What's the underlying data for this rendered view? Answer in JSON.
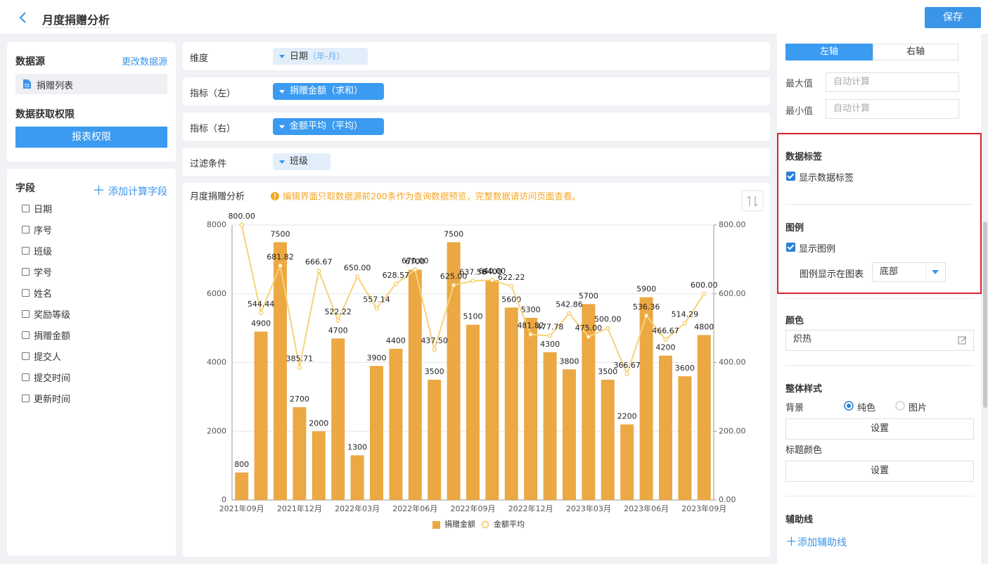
{
  "header": {
    "title": "月度捐赠分析",
    "save_button": "保存"
  },
  "left_panel": {
    "data_source_label": "数据源",
    "change_source": "更改数据源",
    "source_name": "捐赠列表",
    "permission_label": "数据获取权限",
    "permission_button": "报表权限",
    "fields_label": "字段",
    "add_field": "添加计算字段",
    "fields": [
      "日期",
      "序号",
      "班级",
      "学号",
      "姓名",
      "奖励等级",
      "捐赠金额",
      "提交人",
      "提交时间",
      "更新时间"
    ]
  },
  "config_rows": [
    {
      "label": "维度",
      "chip": "日期",
      "chip_note": "（年-月）"
    },
    {
      "label": "指标（左）",
      "chip": "捐赠金额（求和）"
    },
    {
      "label": "指标（右）",
      "chip": "金额平均（平均）"
    },
    {
      "label": "过滤条件",
      "chip": "班级"
    }
  ],
  "right_panel": {
    "axis_tabs": [
      "左轴",
      "右轴"
    ],
    "max_label": "最大值",
    "max_placeholder": "自动计算",
    "min_label": "最小值",
    "min_placeholder": "自动计算",
    "data_label_section": "数据标签",
    "show_data_labels": "显示数据标签",
    "legend_section": "图例",
    "show_legend": "显示图例",
    "legend_position_label": "图例显示在图表",
    "legend_position": "底部",
    "color_section": "颜色",
    "color_value": "炽热",
    "style_section": "整体样式",
    "background_label": "背景",
    "background_options": [
      "纯色",
      "图片"
    ],
    "background_button": "设置",
    "title_color_label": "标题颜色",
    "title_color_button": "设置",
    "aux_section": "辅助线",
    "add_aux": "添加辅助线"
  },
  "chart_data": {
    "type": "bar",
    "title": "月度捐赠分析",
    "notice": "编辑界面只取数据源前200条作为查询数据预览，完整数据请访问页面查看。",
    "categories": [
      "2021年09月",
      null,
      null,
      "2021年12月",
      null,
      null,
      "2022年03月",
      null,
      null,
      "2022年06月",
      null,
      null,
      "2022年09月",
      null,
      null,
      "2022年12月",
      null,
      null,
      "2023年03月",
      null,
      null,
      "2023年06月",
      null,
      null,
      "2023年09月"
    ],
    "series": [
      {
        "name": "捐赠金额",
        "type": "bar",
        "color": "#eba843",
        "values": [
          800,
          4900,
          7500,
          2700,
          2000,
          4700,
          1300,
          3900,
          4400,
          6700,
          3500,
          7500,
          5100,
          6400,
          5600,
          5300,
          4300,
          3800,
          5700,
          3500,
          2200,
          5900,
          4200,
          3600,
          4800
        ]
      },
      {
        "name": "金额平均",
        "type": "line",
        "color": "#f8d27a",
        "axis": "y2",
        "values": [
          800,
          544.44,
          681.82,
          385.71,
          666.67,
          522.22,
          650,
          557.14,
          628.57,
          670,
          437.5,
          625,
          637.5,
          640,
          622.22,
          481.82,
          477.78,
          542.86,
          475,
          500,
          366.67,
          536.36,
          466.67,
          514.29,
          600
        ],
        "value_labels": [
          "800.00",
          "544.44",
          "681.82",
          "385.71",
          "666.67",
          "522.22",
          "650.00",
          "557.14",
          "628.57",
          "670.00",
          "437.50",
          "625.00",
          "637.50",
          "640.00",
          "622.22",
          "481.82",
          "477.78",
          "542.86",
          "475.00",
          "500.00",
          "366.67",
          "536.36",
          "466.67",
          "514.29",
          "600.00"
        ]
      }
    ],
    "ylim": [
      0,
      8000
    ],
    "yticks": [
      0,
      2000,
      4000,
      6000,
      8000
    ],
    "y2lim": [
      0,
      800
    ],
    "y2ticks": [
      {
        "value": 0,
        "label": "0.00"
      },
      {
        "value": 200,
        "label": "200.00"
      },
      {
        "value": 400,
        "label": "400.00"
      },
      {
        "value": 600,
        "label": "600.00"
      },
      {
        "value": 800,
        "label": "800.00"
      }
    ],
    "grid": true,
    "data_labels": true,
    "legend": "bottom"
  }
}
